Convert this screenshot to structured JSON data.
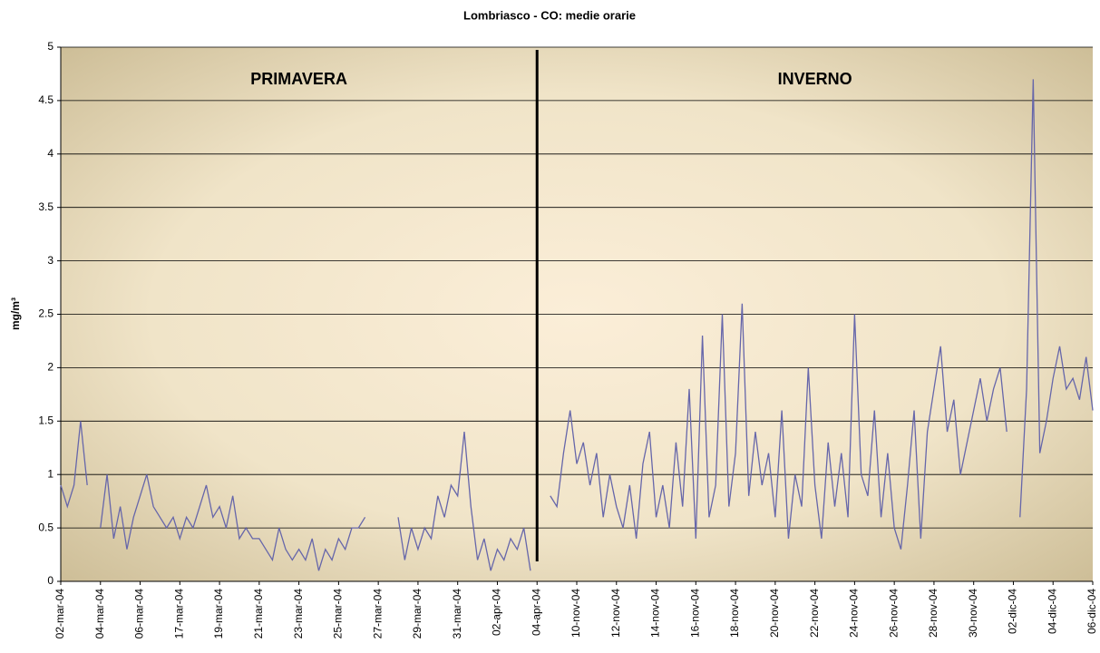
{
  "chart_data": {
    "type": "line",
    "title": "Lombriasco - CO: medie orarie",
    "y_label": "mg/m³",
    "annotations": [
      {
        "text": "PRIMAVERA",
        "color": "#ff0000"
      },
      {
        "text": "INVERNO",
        "color": "#1060c0"
      }
    ],
    "categories": [
      "02-mar-04",
      null,
      null,
      null,
      null,
      null,
      "04-mar-04",
      null,
      null,
      null,
      null,
      null,
      "06-mar-04",
      null,
      null,
      null,
      null,
      null,
      "17-mar-04",
      null,
      null,
      null,
      null,
      null,
      "19-mar-04",
      null,
      null,
      null,
      null,
      null,
      "21-mar-04",
      null,
      null,
      null,
      null,
      null,
      "23-mar-04",
      null,
      null,
      null,
      null,
      null,
      "25-mar-04",
      null,
      null,
      null,
      null,
      null,
      "27-mar-04",
      null,
      null,
      null,
      null,
      null,
      "29-mar-04",
      null,
      null,
      null,
      null,
      null,
      "31-mar-04",
      null,
      null,
      null,
      null,
      null,
      "02-apr-04",
      null,
      null,
      null,
      null,
      null,
      "04-apr-04",
      null,
      null,
      null,
      null,
      null,
      "10-nov-04",
      null,
      null,
      null,
      null,
      null,
      "12-nov-04",
      null,
      null,
      null,
      null,
      null,
      "14-nov-04",
      null,
      null,
      null,
      null,
      null,
      "16-nov-04",
      null,
      null,
      null,
      null,
      null,
      "18-nov-04",
      null,
      null,
      null,
      null,
      null,
      "20-nov-04",
      null,
      null,
      null,
      null,
      null,
      "22-nov-04",
      null,
      null,
      null,
      null,
      null,
      "24-nov-04",
      null,
      null,
      null,
      null,
      null,
      "26-nov-04",
      null,
      null,
      null,
      null,
      null,
      "28-nov-04",
      null,
      null,
      null,
      null,
      null,
      "30-nov-04",
      null,
      null,
      null,
      null,
      null,
      "02-dic-04",
      null,
      null,
      null,
      null,
      null,
      "04-dic-04",
      null,
      null,
      null,
      null,
      null,
      "06-dic-04"
    ],
    "series": [
      {
        "name": "CO",
        "color": "#6666aa",
        "values": [
          0.9,
          0.7,
          0.9,
          1.5,
          0.9,
          null,
          0.5,
          1.0,
          0.4,
          0.7,
          0.3,
          0.6,
          0.8,
          1.0,
          0.7,
          0.6,
          0.5,
          0.6,
          0.4,
          0.6,
          0.5,
          0.7,
          0.9,
          0.6,
          0.7,
          0.5,
          0.8,
          0.4,
          0.5,
          0.4,
          0.4,
          0.3,
          0.2,
          0.5,
          0.3,
          0.2,
          0.3,
          0.2,
          0.4,
          0.1,
          0.3,
          0.2,
          0.4,
          0.3,
          0.5,
          0.5,
          0.6,
          null,
          null,
          null,
          null,
          0.6,
          0.2,
          0.5,
          0.3,
          0.5,
          0.4,
          0.8,
          0.6,
          0.9,
          0.8,
          1.4,
          0.7,
          0.2,
          0.4,
          0.1,
          0.3,
          0.2,
          0.4,
          0.3,
          0.5,
          0.1,
          null,
          null,
          0.8,
          0.7,
          1.2,
          1.6,
          1.1,
          1.3,
          0.9,
          1.2,
          0.6,
          1.0,
          0.7,
          0.5,
          0.9,
          0.4,
          1.1,
          1.4,
          0.6,
          0.9,
          0.5,
          1.3,
          0.7,
          1.8,
          0.4,
          2.3,
          0.6,
          0.9,
          2.5,
          0.7,
          1.2,
          2.6,
          0.8,
          1.4,
          0.9,
          1.2,
          0.6,
          1.6,
          0.4,
          1.0,
          0.7,
          2.0,
          0.9,
          0.4,
          1.3,
          0.7,
          1.2,
          0.6,
          2.5,
          1.0,
          0.8,
          1.6,
          0.6,
          1.2,
          0.5,
          0.3,
          0.9,
          1.6,
          0.4,
          1.4,
          1.8,
          2.2,
          1.4,
          1.7,
          1.0,
          1.3,
          1.6,
          1.9,
          1.5,
          1.8,
          2.0,
          1.4,
          null,
          0.6,
          1.8,
          4.7,
          1.2,
          1.5,
          1.9,
          2.2,
          1.8,
          1.9,
          1.7,
          2.1,
          1.6
        ]
      }
    ],
    "ylim": [
      0,
      5
    ],
    "yticks": [
      0,
      0.5,
      1,
      1.5,
      2,
      2.5,
      3,
      3.5,
      4,
      4.5,
      5
    ],
    "grid": true
  }
}
